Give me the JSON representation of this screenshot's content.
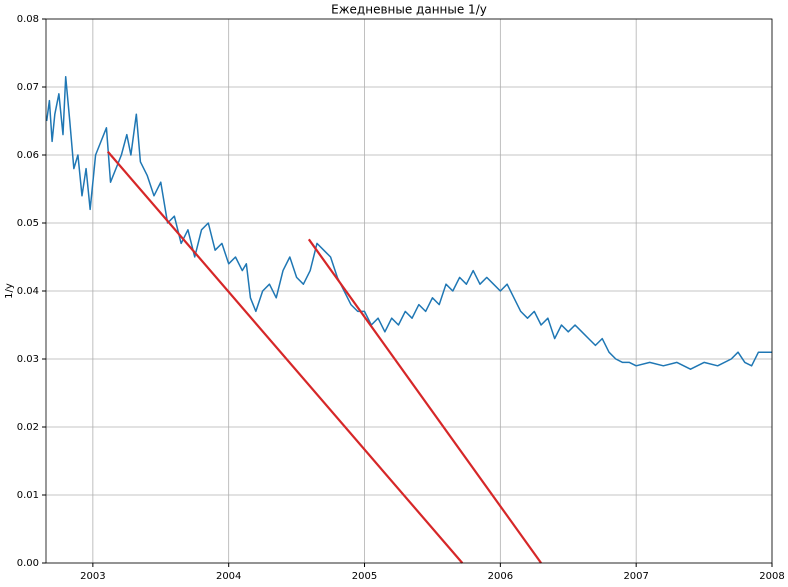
{
  "chart_data": {
    "type": "line",
    "title": "Ежедневные данные 1/y",
    "y_label": "1/y",
    "xlim": [
      2002.655,
      2008
    ],
    "xticks": [
      2003,
      2004,
      2005,
      2006,
      2007,
      2008
    ],
    "ylim": [
      0,
      0.08
    ],
    "yticks": [
      {
        "value": 0,
        "label": "0.00"
      },
      {
        "value": 0.01,
        "label": "0.01"
      },
      {
        "value": 0.02,
        "label": "0.02"
      },
      {
        "value": 0.03,
        "label": "0.03"
      },
      {
        "value": 0.04,
        "label": "0.04"
      },
      {
        "value": 0.05,
        "label": "0.05"
      },
      {
        "value": 0.06,
        "label": "0.06"
      },
      {
        "value": 0.07,
        "label": "0.07"
      },
      {
        "value": 0.08,
        "label": "0.08"
      }
    ],
    "grid": true,
    "series": [
      {
        "color": "#1f77b4",
        "x": [
          2002.66,
          2002.68,
          2002.7,
          2002.72,
          2002.75,
          2002.78,
          2002.8,
          2002.83,
          2002.86,
          2002.89,
          2002.92,
          2002.95,
          2002.98,
          2003.02,
          2003.06,
          2003.1,
          2003.13,
          2003.17,
          2003.21,
          2003.25,
          2003.28,
          2003.32,
          2003.35,
          2003.4,
          2003.45,
          2003.5,
          2003.55,
          2003.6,
          2003.65,
          2003.7,
          2003.75,
          2003.8,
          2003.85,
          2003.9,
          2003.95,
          2004.0,
          2004.05,
          2004.1,
          2004.13,
          2004.16,
          2004.2,
          2004.25,
          2004.3,
          2004.35,
          2004.4,
          2004.45,
          2004.5,
          2004.55,
          2004.6,
          2004.65,
          2004.7,
          2004.75,
          2004.8,
          2004.85,
          2004.9,
          2004.95,
          2005.0,
          2005.05,
          2005.1,
          2005.15,
          2005.2,
          2005.25,
          2005.3,
          2005.35,
          2005.4,
          2005.45,
          2005.5,
          2005.55,
          2005.6,
          2005.65,
          2005.7,
          2005.75,
          2005.8,
          2005.85,
          2005.9,
          2005.95,
          2006.0,
          2006.05,
          2006.1,
          2006.15,
          2006.2,
          2006.25,
          2006.3,
          2006.35,
          2006.4,
          2006.45,
          2006.5,
          2006.55,
          2006.6,
          2006.65,
          2006.7,
          2006.75,
          2006.8,
          2006.85,
          2006.9,
          2006.95,
          2007.0,
          2007.1,
          2007.2,
          2007.3,
          2007.4,
          2007.5,
          2007.6,
          2007.7,
          2007.75,
          2007.8,
          2007.85,
          2007.9,
          2007.95,
          2008.0
        ],
        "values": [
          0.065,
          0.068,
          0.062,
          0.066,
          0.069,
          0.063,
          0.0715,
          0.065,
          0.058,
          0.06,
          0.054,
          0.058,
          0.052,
          0.06,
          0.062,
          0.064,
          0.056,
          0.058,
          0.06,
          0.063,
          0.06,
          0.066,
          0.059,
          0.057,
          0.054,
          0.056,
          0.05,
          0.051,
          0.047,
          0.049,
          0.045,
          0.049,
          0.05,
          0.046,
          0.047,
          0.044,
          0.045,
          0.043,
          0.044,
          0.039,
          0.037,
          0.04,
          0.041,
          0.039,
          0.043,
          0.045,
          0.042,
          0.041,
          0.043,
          0.047,
          0.046,
          0.045,
          0.042,
          0.04,
          0.038,
          0.037,
          0.037,
          0.035,
          0.036,
          0.034,
          0.036,
          0.035,
          0.037,
          0.036,
          0.038,
          0.037,
          0.039,
          0.038,
          0.041,
          0.04,
          0.042,
          0.041,
          0.043,
          0.041,
          0.042,
          0.041,
          0.04,
          0.041,
          0.039,
          0.037,
          0.036,
          0.037,
          0.035,
          0.036,
          0.033,
          0.035,
          0.034,
          0.035,
          0.034,
          0.033,
          0.032,
          0.033,
          0.031,
          0.03,
          0.0295,
          0.0295,
          0.029,
          0.0295,
          0.029,
          0.0295,
          0.0285,
          0.0295,
          0.029,
          0.03,
          0.031,
          0.0295,
          0.029,
          0.031,
          0.031,
          0.031
        ]
      },
      {
        "color": "#d62728",
        "x": [
          2003.11,
          2005.72
        ],
        "values": [
          0.0605,
          0
        ]
      },
      {
        "color": "#d62728",
        "x": [
          2004.59,
          2006.3
        ],
        "values": [
          0.0476,
          0
        ]
      }
    ]
  }
}
